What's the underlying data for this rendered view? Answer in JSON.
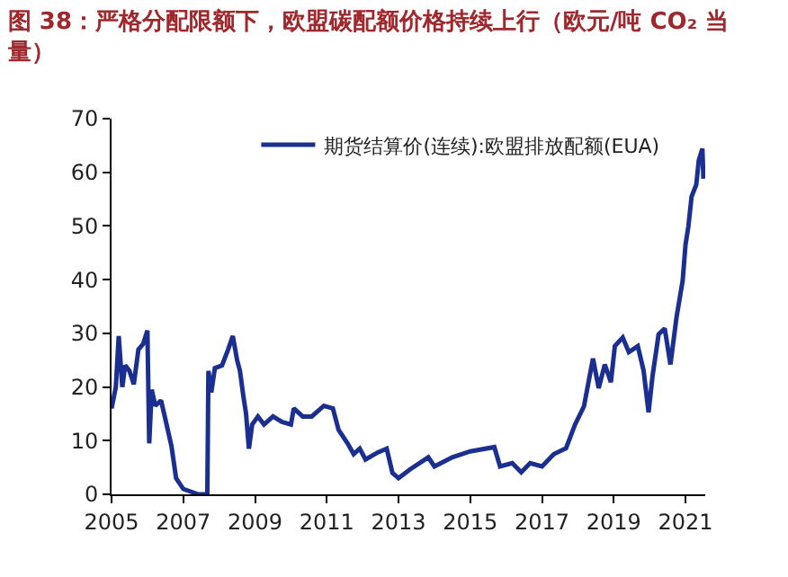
{
  "chart_data": {
    "type": "line",
    "title": "图 38：严格分配限额下，欧盟碳配额价格持续上行（欧元/吨 CO₂ 当量）",
    "x": [
      2005.0,
      2005.12,
      2005.2,
      2005.3,
      2005.38,
      2005.5,
      2005.62,
      2005.75,
      2005.88,
      2006.0,
      2006.05,
      2006.12,
      2006.22,
      2006.38,
      2006.5,
      2006.67,
      2006.8,
      2007.0,
      2007.42,
      2007.67,
      2007.7,
      2007.78,
      2007.88,
      2008.08,
      2008.25,
      2008.38,
      2008.5,
      2008.58,
      2008.67,
      2008.75,
      2008.83,
      2008.92,
      2009.08,
      2009.25,
      2009.5,
      2009.75,
      2010.0,
      2010.08,
      2010.33,
      2010.58,
      2010.92,
      2011.17,
      2011.33,
      2011.58,
      2011.75,
      2011.92,
      2012.08,
      2012.42,
      2012.67,
      2012.83,
      2013.0,
      2013.33,
      2013.83,
      2014.0,
      2014.5,
      2015.0,
      2015.67,
      2015.83,
      2016.17,
      2016.42,
      2016.67,
      2017.0,
      2017.33,
      2017.67,
      2017.92,
      2018.17,
      2018.42,
      2018.58,
      2018.75,
      2018.92,
      2019.03,
      2019.25,
      2019.42,
      2019.67,
      2019.83,
      2019.97,
      2020.08,
      2020.25,
      2020.42,
      2020.58,
      2020.75,
      2020.92,
      2021.0,
      2021.08,
      2021.17,
      2021.3,
      2021.37,
      2021.47,
      2021.5
    ],
    "series": [
      {
        "name": "期货结算价(连续):欧盟排放配额(EUA)",
        "color": "#1a2f8f",
        "values": [
          16,
          20,
          29.5,
          20,
          24,
          23,
          20.5,
          27,
          28,
          30.5,
          9.5,
          19.5,
          16.5,
          17.5,
          14,
          9,
          3,
          1,
          0,
          0,
          23,
          19,
          23.5,
          24,
          27,
          29.5,
          25,
          23,
          18.5,
          15,
          8.5,
          13,
          14.5,
          13,
          14.5,
          13.5,
          13,
          16,
          14.5,
          14.5,
          16.5,
          16,
          12,
          9.5,
          7.5,
          8.5,
          6.5,
          7.8,
          8.5,
          4,
          3,
          4.7,
          6.9,
          5.2,
          6.9,
          8,
          8.8,
          5.2,
          5.8,
          4.1,
          5.8,
          5.2,
          7.5,
          8.6,
          13,
          16.4,
          25.3,
          19.8,
          24.2,
          20.9,
          27.6,
          29.2,
          26.5,
          27.6,
          23.1,
          15.3,
          22,
          29.8,
          30.9,
          24.2,
          33,
          39.8,
          46.5,
          49.9,
          55.5,
          57.7,
          62.2,
          64.4,
          58.8
        ]
      }
    ],
    "xlim": [
      2005,
      2021.55
    ],
    "xticks": [
      2005,
      2007,
      2009,
      2011,
      2013,
      2015,
      2017,
      2019,
      2021
    ],
    "ylim": [
      0,
      70
    ],
    "yticks": [
      0,
      10,
      20,
      30,
      40,
      50,
      60,
      70
    ],
    "legend": "top right",
    "line_style": "solid",
    "marker": "none"
  }
}
